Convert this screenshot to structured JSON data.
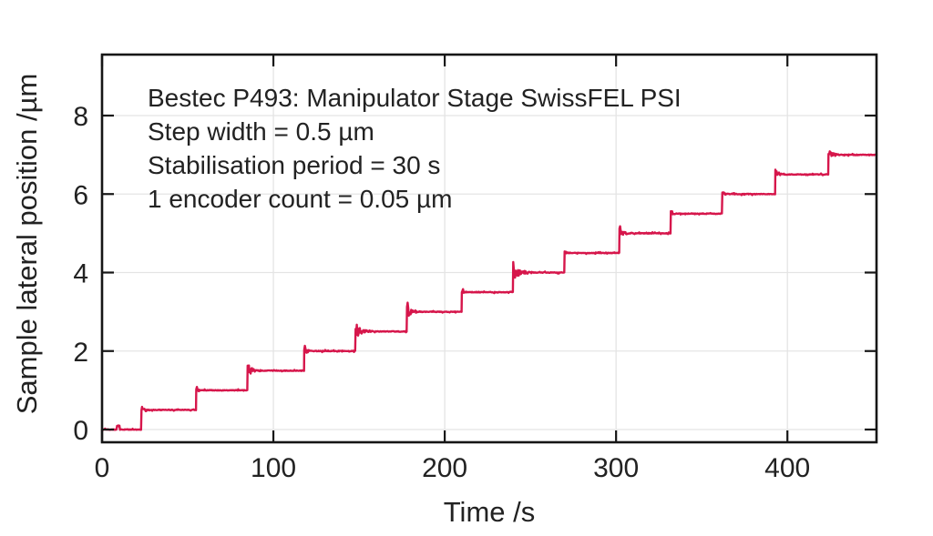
{
  "colors": {
    "trace": "#d6164b",
    "axis": "#161616",
    "grid": "#e4e4e4",
    "text": "#222222",
    "background": "#ffffff"
  },
  "chart_data": {
    "type": "line",
    "subtype": "staircase-step-scan",
    "title": "",
    "annotation": [
      "Bestec P493: Manipulator Stage SwissFEL PSI",
      "Step width = 0.5 µm",
      "Stabilisation period = 30 s",
      "1 encoder count = 0.05 µm"
    ],
    "xlabel": "Time /s",
    "ylabel": "Sample lateral position /µm",
    "xlim": [
      0,
      452
    ],
    "ylim": [
      -0.33,
      9.56
    ],
    "x_ticks": [
      0,
      100,
      200,
      300,
      400
    ],
    "y_ticks": [
      0,
      2,
      4,
      6,
      8
    ],
    "grid": true,
    "legend": "none",
    "line_color": "#d6164b",
    "series": [
      {
        "name": "sample-lateral-position",
        "step_height_um": 0.5,
        "stabilisation_period_s": 30,
        "encoder_count_um": 0.05,
        "steps": [
          {
            "t": 0,
            "level": 0.0,
            "noise": 0.0,
            "noise_dur": 0
          },
          {
            "t": 23,
            "level": 0.5,
            "noise": 0.1,
            "noise_dur": 6
          },
          {
            "t": 55,
            "level": 1.0,
            "noise": 0.06,
            "noise_dur": 4
          },
          {
            "t": 85,
            "level": 1.5,
            "noise": 0.13,
            "noise_dur": 9
          },
          {
            "t": 118,
            "level": 2.0,
            "noise": 0.1,
            "noise_dur": 6
          },
          {
            "t": 148,
            "level": 2.5,
            "noise": 0.16,
            "noise_dur": 11
          },
          {
            "t": 178,
            "level": 3.0,
            "noise": 0.15,
            "noise_dur": 8
          },
          {
            "t": 210,
            "level": 3.5,
            "noise": 0.06,
            "noise_dur": 4
          },
          {
            "t": 240,
            "level": 4.0,
            "noise": 0.17,
            "noise_dur": 12
          },
          {
            "t": 270,
            "level": 4.5,
            "noise": 0.06,
            "noise_dur": 4
          },
          {
            "t": 302,
            "level": 5.0,
            "noise": 0.11,
            "noise_dur": 7
          },
          {
            "t": 332,
            "level": 5.5,
            "noise": 0.06,
            "noise_dur": 4
          },
          {
            "t": 362,
            "level": 6.0,
            "noise": 0.08,
            "noise_dur": 5
          },
          {
            "t": 393,
            "level": 6.5,
            "noise": 0.11,
            "noise_dur": 7
          },
          {
            "t": 424,
            "level": 7.0,
            "noise": 0.12,
            "noise_dur": 7
          }
        ],
        "spikes": [
          {
            "t": 8.5,
            "amp": 0.12,
            "dur": 1.8
          }
        ]
      }
    ]
  }
}
